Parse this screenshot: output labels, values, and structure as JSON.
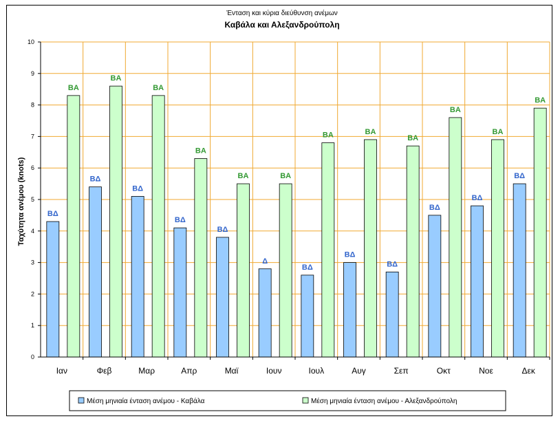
{
  "chart_data": {
    "type": "bar",
    "title": "Ένταση και κύρια διεύθυνση ανέμων",
    "subtitle": "Καβάλα και Αλεξανδρούπολη",
    "xlabel": "",
    "ylabel": "Ταχύτητα ανέμου (knots)",
    "ylim": [
      0,
      10
    ],
    "yticks": [
      "0",
      "1",
      "2",
      "3",
      "4",
      "5",
      "6",
      "7",
      "8",
      "9",
      "10"
    ],
    "grid": true,
    "legend_position": "bottom",
    "categories": [
      "Ιαν",
      "Φεβ",
      "Μαρ",
      "Απρ",
      "Μαϊ",
      "Ιουν",
      "Ιουλ",
      "Αυγ",
      "Σεπ",
      "Οκτ",
      "Νοε",
      "Δεκ"
    ],
    "series": [
      {
        "name": "Μέση μηνιαία ένταση ανέμου - Καβάλα",
        "color": "#99ccff",
        "label_color": "#3366cc",
        "values": [
          4.3,
          5.4,
          5.1,
          4.1,
          3.8,
          2.8,
          2.6,
          3.0,
          2.7,
          4.5,
          4.8,
          5.5
        ],
        "data_labels": [
          "ΒΔ",
          "ΒΔ",
          "ΒΔ",
          "ΒΔ",
          "ΒΔ",
          "Δ",
          "ΒΔ",
          "ΒΔ",
          "ΒΔ",
          "ΒΔ",
          "ΒΔ",
          "ΒΔ"
        ]
      },
      {
        "name": "Μέση μηνιαία ένταση ανέμου - Αλεξανδρούπολη",
        "color": "#ccffcc",
        "label_color": "#339933",
        "values": [
          8.3,
          8.6,
          8.3,
          6.3,
          5.5,
          5.5,
          6.8,
          6.9,
          6.7,
          7.6,
          6.9,
          7.9
        ],
        "data_labels": [
          "ΒΑ",
          "ΒΑ",
          "ΒΑ",
          "ΒΑ",
          "ΒΑ",
          "ΒΑ",
          "ΒΑ",
          "ΒΑ",
          "ΒΑ",
          "ΒΑ",
          "ΒΑ",
          "ΒΑ"
        ]
      }
    ],
    "gridline_color": "#f0a830",
    "axis_color": "#000000"
  }
}
